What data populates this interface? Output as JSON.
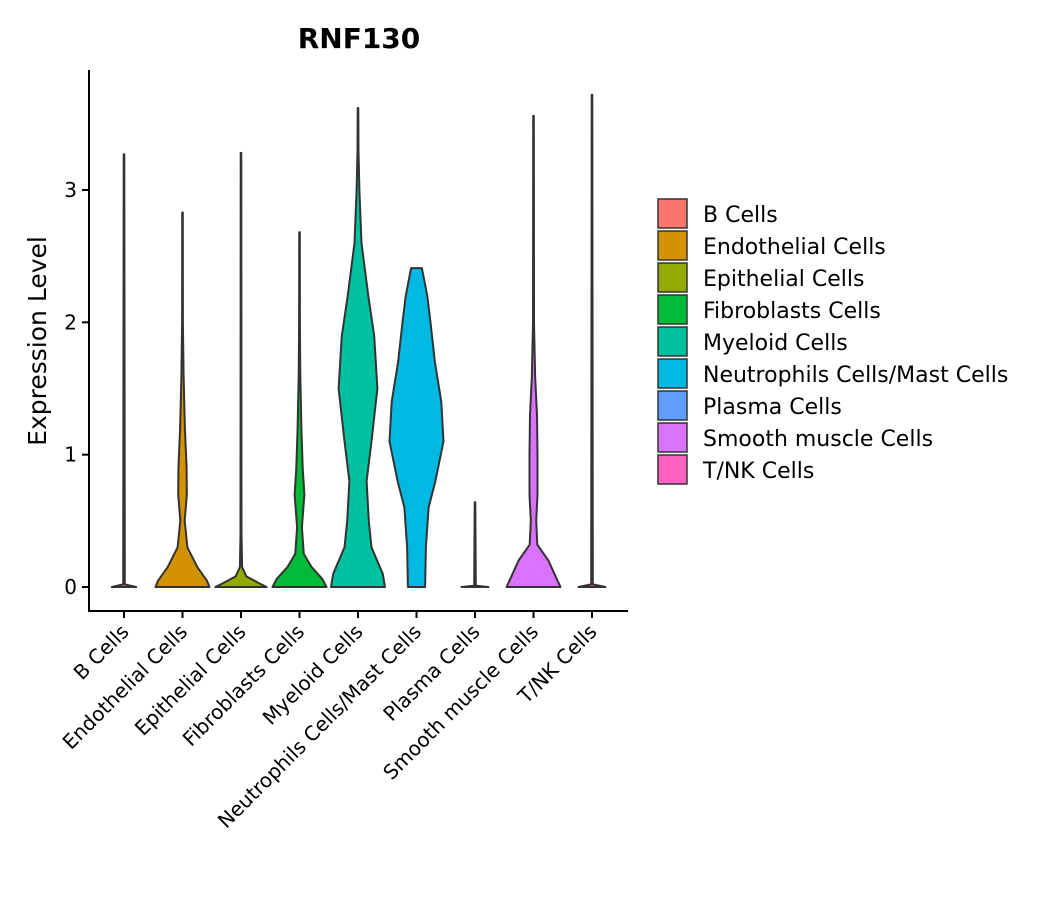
{
  "chart_data": {
    "type": "violin",
    "title": "RNF130",
    "xlabel": "",
    "ylabel": "Expression Level",
    "ylim": [
      -0.2,
      3.9
    ],
    "yticks": [
      "0",
      "1",
      "2",
      "3"
    ],
    "ytick_values": [
      0,
      1,
      2,
      3
    ],
    "grid": false,
    "legend_position": "right",
    "categories": [
      "B Cells",
      "Endothelial Cells",
      "Epithelial Cells",
      "Fibroblasts Cells",
      "Myeloid Cells",
      "Neutrophils Cells/Mast Cells",
      "Plasma Cells",
      "Smooth muscle Cells",
      "T/NK Cells"
    ],
    "series": [
      {
        "name": "B Cells",
        "color": "#F8766D",
        "max": 3.27,
        "profile": [
          [
            0,
            0.45
          ],
          [
            0.02,
            0.03
          ],
          [
            3.27,
            0.01
          ]
        ]
      },
      {
        "name": "Endothelial Cells",
        "color": "#D39200",
        "max": 2.83,
        "profile": [
          [
            0,
            1.0
          ],
          [
            0.05,
            0.9
          ],
          [
            0.15,
            0.55
          ],
          [
            0.3,
            0.18
          ],
          [
            0.5,
            0.08
          ],
          [
            0.7,
            0.16
          ],
          [
            0.9,
            0.15
          ],
          [
            1.2,
            0.09
          ],
          [
            1.6,
            0.04
          ],
          [
            2.0,
            0.015
          ],
          [
            2.83,
            0.01
          ]
        ]
      },
      {
        "name": "Epithelial Cells",
        "color": "#93AA00",
        "max": 3.28,
        "profile": [
          [
            0,
            0.95
          ],
          [
            0.03,
            0.65
          ],
          [
            0.08,
            0.2
          ],
          [
            0.15,
            0.04
          ],
          [
            0.4,
            0.02
          ],
          [
            3.28,
            0.01
          ]
        ]
      },
      {
        "name": "Fibroblasts Cells",
        "color": "#00BA38",
        "max": 2.68,
        "profile": [
          [
            0,
            1.0
          ],
          [
            0.06,
            0.85
          ],
          [
            0.15,
            0.45
          ],
          [
            0.25,
            0.16
          ],
          [
            0.45,
            0.09
          ],
          [
            0.7,
            0.18
          ],
          [
            0.9,
            0.12
          ],
          [
            1.2,
            0.07
          ],
          [
            1.6,
            0.03
          ],
          [
            2.0,
            0.015
          ],
          [
            2.68,
            0.01
          ]
        ]
      },
      {
        "name": "Myeloid Cells",
        "color": "#00C19F",
        "max": 3.62,
        "profile": [
          [
            0,
            1.0
          ],
          [
            0.1,
            0.92
          ],
          [
            0.3,
            0.5
          ],
          [
            0.5,
            0.4
          ],
          [
            0.8,
            0.32
          ],
          [
            1.1,
            0.5
          ],
          [
            1.5,
            0.72
          ],
          [
            1.9,
            0.6
          ],
          [
            2.2,
            0.38
          ],
          [
            2.6,
            0.13
          ],
          [
            3.0,
            0.05
          ],
          [
            3.3,
            0.02
          ],
          [
            3.62,
            0.01
          ]
        ]
      },
      {
        "name": "Neutrophils Cells/Mast Cells",
        "color": "#00B9E3",
        "max": 2.41,
        "profile": [
          [
            0,
            0.32
          ],
          [
            0.3,
            0.35
          ],
          [
            0.6,
            0.45
          ],
          [
            0.8,
            0.7
          ],
          [
            1.1,
            1.0
          ],
          [
            1.4,
            0.92
          ],
          [
            1.7,
            0.68
          ],
          [
            2.0,
            0.52
          ],
          [
            2.2,
            0.4
          ],
          [
            2.41,
            0.2
          ]
        ]
      },
      {
        "name": "Plasma Cells",
        "color": "#619CFF",
        "max": 0.64,
        "profile": [
          [
            0,
            0.5
          ],
          [
            0.01,
            0.03
          ],
          [
            0.64,
            0.01
          ]
        ]
      },
      {
        "name": "Smooth muscle Cells",
        "color": "#DB72FB",
        "max": 3.56,
        "profile": [
          [
            0,
            1.0
          ],
          [
            0.08,
            0.82
          ],
          [
            0.2,
            0.55
          ],
          [
            0.32,
            0.14
          ],
          [
            0.5,
            0.1
          ],
          [
            0.7,
            0.15
          ],
          [
            1.0,
            0.15
          ],
          [
            1.3,
            0.13
          ],
          [
            1.6,
            0.06
          ],
          [
            2.0,
            0.02
          ],
          [
            3.56,
            0.01
          ]
        ]
      },
      {
        "name": "T/NK Cells",
        "color": "#FF61C3",
        "max": 3.72,
        "profile": [
          [
            0,
            0.5
          ],
          [
            0.02,
            0.03
          ],
          [
            3.72,
            0.01
          ]
        ]
      }
    ]
  }
}
